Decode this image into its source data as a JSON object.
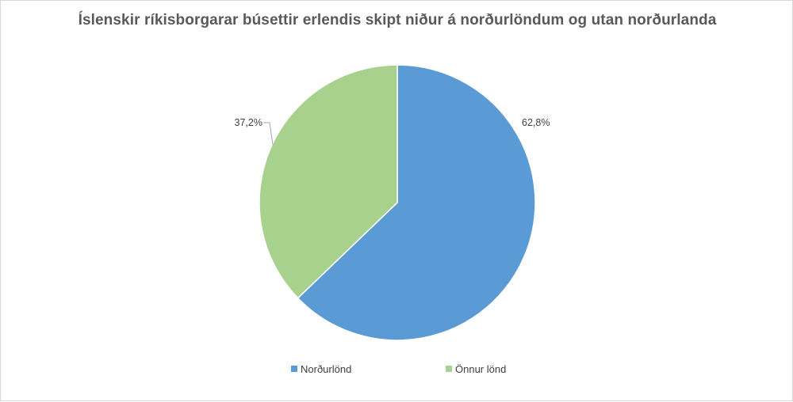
{
  "chart_data": {
    "type": "pie",
    "title": "Íslenskir ríkisborgarar búsettir erlendis skipt niður á norðurlöndum og utan norðurlanda",
    "categories": [
      "Norðurlönd",
      "Önnur lönd"
    ],
    "values": [
      62.8,
      37.2
    ],
    "data_labels": [
      "62,8%",
      "37,2%"
    ],
    "colors": [
      "#5b9bd5",
      "#a9d18e"
    ],
    "start_angle_deg": 0,
    "direction": "clockwise",
    "legend_position": "bottom"
  }
}
